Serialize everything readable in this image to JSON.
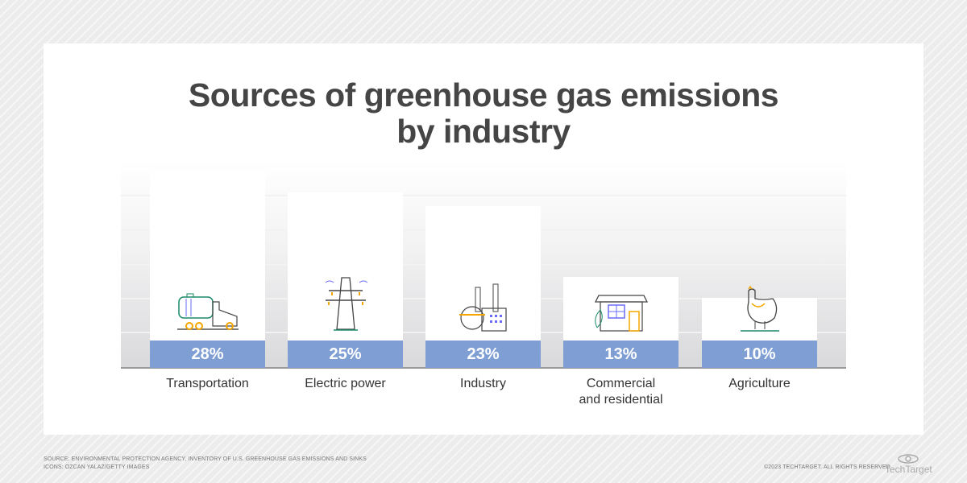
{
  "title_line1": "Sources of greenhouse gas emissions",
  "title_line2": "by industry",
  "chart_data": {
    "type": "bar",
    "title": "Sources of greenhouse gas emissions by industry",
    "categories": [
      "Transportation",
      "Electric power",
      "Industry",
      "Commercial and residential",
      "Agriculture"
    ],
    "category_lines": [
      [
        "Transportation"
      ],
      [
        "Electric power"
      ],
      [
        "Industry"
      ],
      [
        "Commercial",
        "and residential"
      ],
      [
        "Agriculture"
      ]
    ],
    "values": [
      28,
      25,
      23,
      13,
      10
    ],
    "labels": [
      "28%",
      "25%",
      "23%",
      "13%",
      "10%"
    ],
    "icons": [
      "tanker-truck-icon",
      "power-pylon-icon",
      "factory-icon",
      "house-icon",
      "chicken-icon"
    ],
    "grid": true,
    "bar_color": "#7f9fd4"
  },
  "footer": {
    "source": "SOURCE: ENVIRONMENTAL PROTECTION AGENCY, INVENTORY OF U.S. GREENHOUSE GAS EMISSIONS AND SINKS",
    "icons": "ICONS: OZCAN YALAZ/GETTY IMAGES",
    "copyright": "©2023 TECHTARGET. ALL RIGHTS RESERVED",
    "logo": "TechTarget"
  }
}
